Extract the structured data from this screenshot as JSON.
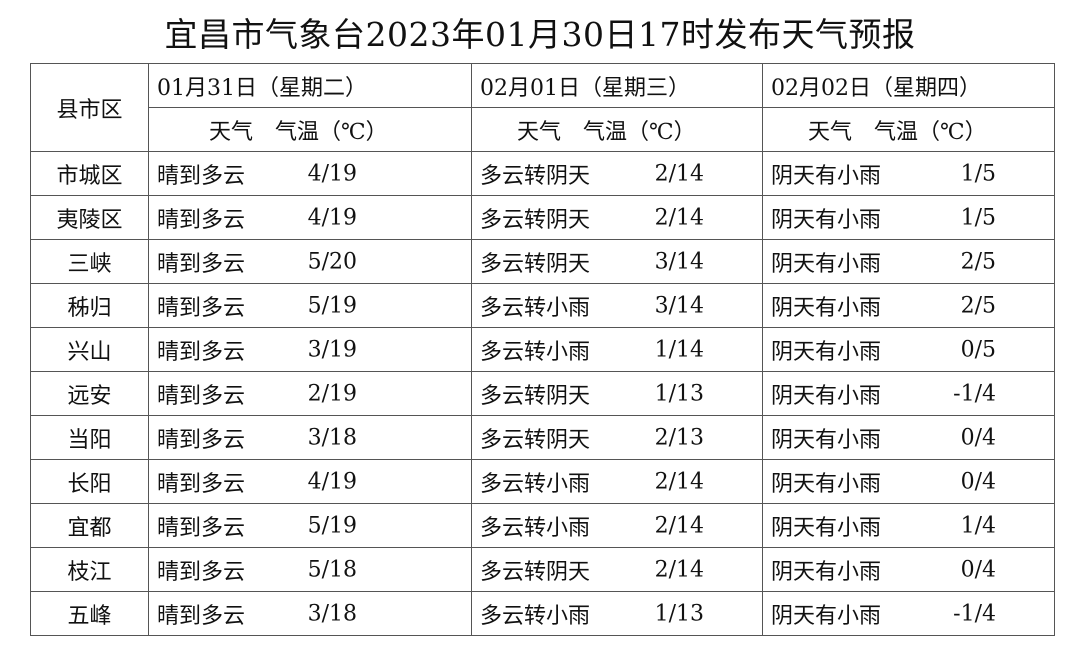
{
  "title": "宜昌市气象台2023年01月30日17时发布天气预报",
  "header": {
    "region_label": "县市区",
    "days": [
      {
        "date": "01月31日（星期二）",
        "weather_label": "天气",
        "temp_label": "气温（℃）"
      },
      {
        "date": "02月01日（星期三）",
        "weather_label": "天气",
        "temp_label": "气温（℃）"
      },
      {
        "date": "02月02日（星期四）",
        "weather_label": "天气",
        "temp_label": "气温（℃）"
      }
    ]
  },
  "rows": [
    {
      "region": "市城区",
      "days": [
        {
          "weather": "晴到多云",
          "temp": "4/19"
        },
        {
          "weather": "多云转阴天",
          "temp": "2/14"
        },
        {
          "weather": "阴天有小雨",
          "temp": "1/5"
        }
      ]
    },
    {
      "region": "夷陵区",
      "days": [
        {
          "weather": "晴到多云",
          "temp": "4/19"
        },
        {
          "weather": "多云转阴天",
          "temp": "2/14"
        },
        {
          "weather": "阴天有小雨",
          "temp": "1/5"
        }
      ]
    },
    {
      "region": "三峡",
      "days": [
        {
          "weather": "晴到多云",
          "temp": "5/20"
        },
        {
          "weather": "多云转阴天",
          "temp": "3/14"
        },
        {
          "weather": "阴天有小雨",
          "temp": "2/5"
        }
      ]
    },
    {
      "region": "秭归",
      "days": [
        {
          "weather": "晴到多云",
          "temp": "5/19"
        },
        {
          "weather": "多云转小雨",
          "temp": "3/14"
        },
        {
          "weather": "阴天有小雨",
          "temp": "2/5"
        }
      ]
    },
    {
      "region": "兴山",
      "days": [
        {
          "weather": "晴到多云",
          "temp": "3/19"
        },
        {
          "weather": "多云转小雨",
          "temp": "1/14"
        },
        {
          "weather": "阴天有小雨",
          "temp": "0/5"
        }
      ]
    },
    {
      "region": "远安",
      "days": [
        {
          "weather": "晴到多云",
          "temp": "2/19"
        },
        {
          "weather": "多云转阴天",
          "temp": "1/13"
        },
        {
          "weather": "阴天有小雨",
          "temp": "-1/4"
        }
      ]
    },
    {
      "region": "当阳",
      "days": [
        {
          "weather": "晴到多云",
          "temp": "3/18"
        },
        {
          "weather": "多云转阴天",
          "temp": "2/13"
        },
        {
          "weather": "阴天有小雨",
          "temp": "0/4"
        }
      ]
    },
    {
      "region": "长阳",
      "days": [
        {
          "weather": "晴到多云",
          "temp": "4/19"
        },
        {
          "weather": "多云转小雨",
          "temp": "2/14"
        },
        {
          "weather": "阴天有小雨",
          "temp": "0/4"
        }
      ]
    },
    {
      "region": "宜都",
      "days": [
        {
          "weather": "晴到多云",
          "temp": "5/19"
        },
        {
          "weather": "多云转小雨",
          "temp": "2/14"
        },
        {
          "weather": "阴天有小雨",
          "temp": "1/4"
        }
      ]
    },
    {
      "region": "枝江",
      "days": [
        {
          "weather": "晴到多云",
          "temp": "5/18"
        },
        {
          "weather": "多云转阴天",
          "temp": "2/14"
        },
        {
          "weather": "阴天有小雨",
          "temp": "0/4"
        }
      ]
    },
    {
      "region": "五峰",
      "days": [
        {
          "weather": "晴到多云",
          "temp": "3/18"
        },
        {
          "weather": "多云转小雨",
          "temp": "1/13"
        },
        {
          "weather": "阴天有小雨",
          "temp": "-1/4"
        }
      ]
    }
  ]
}
